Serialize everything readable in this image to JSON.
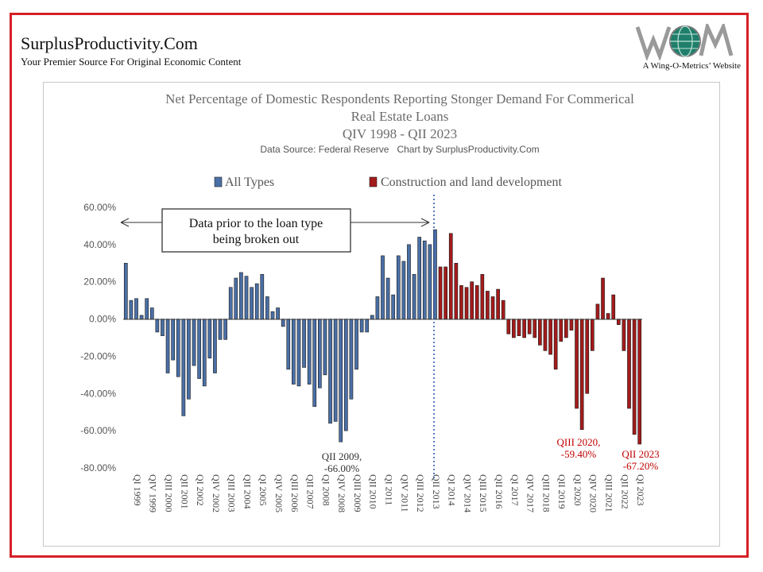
{
  "site": {
    "title": "SurplusProductivity.Com",
    "subtitle": "Your Premier Source For Original Economic Content",
    "logo_text": "WOM",
    "logo_caption": "A Wing-O-Metrics’ Website"
  },
  "chart_data": {
    "type": "bar",
    "title_lines": [
      "Net Percentage of Domestic Respondents Reporting Stonger Demand For Commerical",
      "Real Estate Loans",
      "QIV 1998 - QII 2023"
    ],
    "source": "Data Source: Federal Reserve   Chart by SurplusProductivity.Com",
    "ylim": [
      -80,
      60
    ],
    "yticks": [
      "60.00%",
      "40.00%",
      "20.00%",
      "0.00%",
      "-20.00%",
      "-40.00%",
      "-60.00%",
      "-80.00%"
    ],
    "ytick_values": [
      60,
      40,
      20,
      0,
      -20,
      -40,
      -60,
      -80
    ],
    "x_tick_labels": [
      "QI 1999",
      "QIV 1999",
      "QIII 2000",
      "QII 2001",
      "QI 2002",
      "QIV 2002",
      "QIII 2003",
      "QII 2004",
      "QI 2005",
      "QIV 2005",
      "QIII 2006",
      "QII 2007",
      "QI 2008",
      "QIV 2008",
      "QIII 2009",
      "QII 2010",
      "QI 2011",
      "QIV 2011",
      "QIII 2012",
      "QII 2013",
      "QI 2014",
      "QIV 2014",
      "QIII 2015",
      "QII 2016",
      "QI 2017",
      "QIV 2017",
      "QIII 2018",
      "QII 2019",
      "QI 2020",
      "QIV 2020",
      "QIII 2021",
      "QII 2022",
      "QI 2023"
    ],
    "legend": [
      {
        "name": "All Types",
        "color": "#4a6fa5"
      },
      {
        "name": "Construction and land development",
        "color": "#a31b1b"
      }
    ],
    "colors": {
      "all_types": "#4a6fa5",
      "construction": "#a31b1b",
      "annotation_red": "#c00000",
      "divider": "#2e5aa8"
    },
    "series": [
      {
        "name": "All Types",
        "values": [
          30,
          10,
          11,
          2,
          11,
          6,
          -7,
          -9,
          -29,
          -22,
          -31,
          -52,
          -43,
          -25,
          -32,
          -36,
          -21,
          -29,
          -11,
          -11,
          17,
          22,
          25,
          23,
          17,
          19,
          24,
          12,
          4,
          6,
          -4,
          -27,
          -35,
          -36,
          -26,
          -35,
          -47,
          -37,
          -30,
          -56,
          -55,
          -66,
          -60,
          -43,
          -27,
          -7,
          -7,
          2,
          12,
          34,
          22,
          13,
          34,
          31,
          40,
          24,
          44,
          42,
          40,
          48
        ]
      },
      {
        "name": "Construction and land development",
        "values": [
          28,
          28,
          46,
          30,
          18,
          17,
          20,
          18,
          24,
          15,
          12,
          16,
          10,
          -8,
          -10,
          -9,
          -10,
          -8,
          -10,
          -14,
          -17,
          -19,
          -27,
          -12,
          -10,
          -6,
          -48,
          -59.4,
          -40,
          -17,
          8,
          22,
          3,
          13,
          -3,
          -17,
          -48,
          -62,
          -67.2
        ]
      }
    ],
    "divider_text": "Data prior to the loan type being broken out",
    "divider_text_lines": [
      "Data prior to the loan type",
      "being broken out"
    ],
    "annotations": [
      {
        "lines": [
          "QII 2009,",
          "-66.00%"
        ],
        "color": "#333333"
      },
      {
        "lines": [
          "QIII 2020,",
          "-59.40%"
        ],
        "color": "#c00000"
      },
      {
        "lines": [
          "QII 2023",
          "-67.20%"
        ],
        "color": "#c00000"
      }
    ]
  }
}
